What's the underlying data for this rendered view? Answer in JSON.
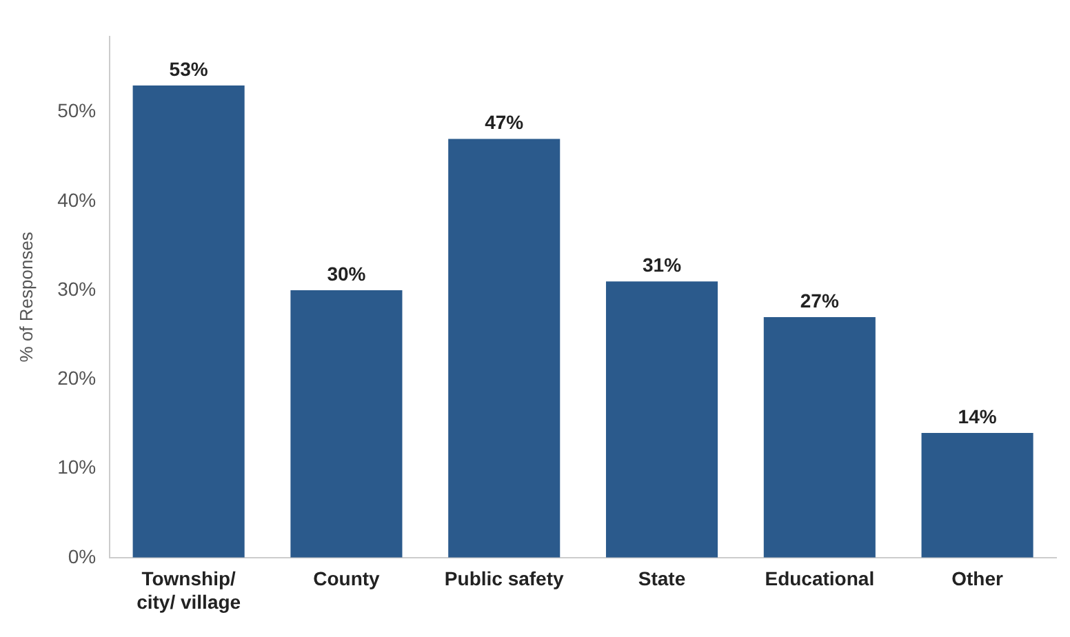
{
  "chart_data": {
    "type": "bar",
    "ylabel": "% of Responses",
    "categories": [
      "Township/ city/ village",
      "County",
      "Public safety",
      "State",
      "Educational",
      "Other"
    ],
    "values": [
      53,
      30,
      47,
      31,
      27,
      14
    ],
    "value_labels": [
      "53%",
      "30%",
      "47%",
      "31%",
      "27%",
      "14%"
    ],
    "color": "#2b5a8c",
    "ylim": [
      0,
      58.5
    ],
    "yticks": [
      {
        "value": 0,
        "label": "0%"
      },
      {
        "value": 10,
        "label": "10%"
      },
      {
        "value": 20,
        "label": "20%"
      },
      {
        "value": 30,
        "label": "30%"
      },
      {
        "value": 40,
        "label": "40%"
      },
      {
        "value": 50,
        "label": "50%"
      }
    ],
    "grid": false,
    "legend": false
  }
}
